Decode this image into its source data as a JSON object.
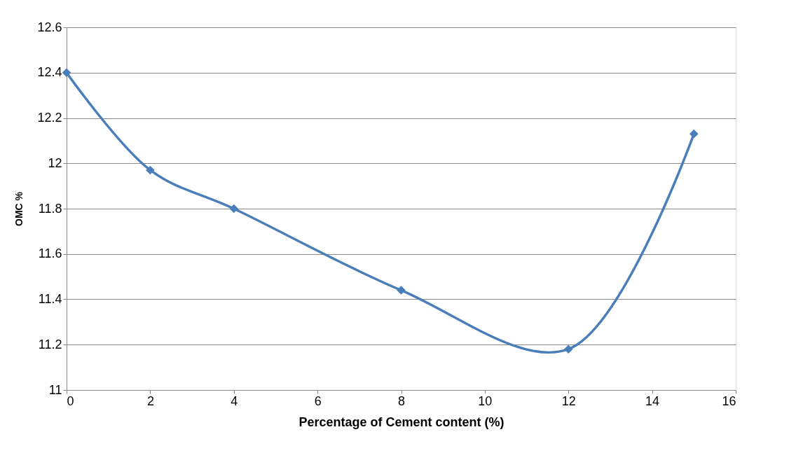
{
  "chart_data": {
    "type": "line",
    "xlabel": "Percentage of Cement content (%)",
    "ylabel": "OMC %",
    "x": [
      0,
      2,
      4,
      8,
      12,
      15
    ],
    "series": [
      {
        "color": "#4a7ebb",
        "values": [
          12.4,
          11.97,
          11.8,
          11.44,
          11.18,
          12.13
        ]
      }
    ],
    "xlim": [
      0,
      16
    ],
    "xticks": [
      0,
      2,
      4,
      6,
      8,
      10,
      12,
      14,
      16
    ],
    "ylim": [
      11,
      12.6
    ],
    "yticks": [
      11,
      11.2,
      11.4,
      11.6,
      11.8,
      12,
      12.2,
      12.4,
      12.6
    ],
    "grid": "y",
    "marker": "diamond",
    "line_style": "solid"
  }
}
